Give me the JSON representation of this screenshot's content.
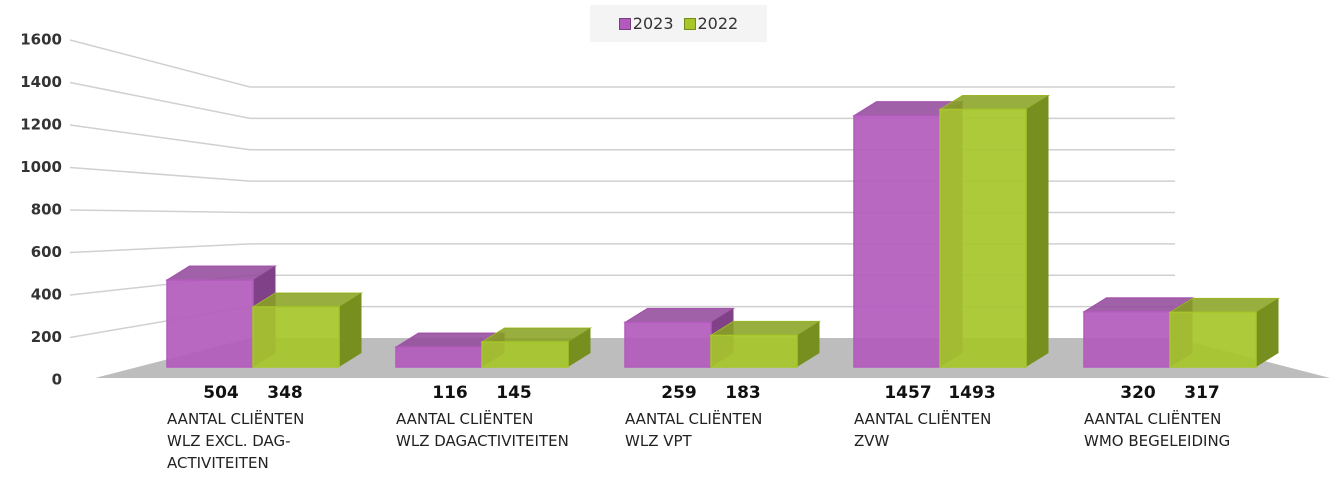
{
  "chart_data": {
    "type": "bar3d",
    "categories": [
      "AANTAL CLIËNTEN\nWLZ EXCL. DAG-\nACTIVITEITEN",
      "AANTAL CLIËNTEN\nWLZ DAGACTIVITEITEN",
      "AANTAL CLIËNTEN\nWLZ VPT",
      "AANTAL CLIËNTEN\nZVW",
      "AANTAL CLIËNTEN\nWMO BEGELEIDING"
    ],
    "series": [
      {
        "name": "2023",
        "color": "#b35bbd",
        "values": [
          504,
          116,
          259,
          1457,
          320
        ]
      },
      {
        "name": "2022",
        "color": "#a6c62a",
        "values": [
          348,
          145,
          183,
          1493,
          317
        ]
      }
    ],
    "ylim": [
      0,
      1600
    ],
    "yticks": [
      0,
      200,
      400,
      600,
      800,
      1000,
      1200,
      1400,
      1600
    ],
    "grid": true,
    "legend": "top"
  }
}
